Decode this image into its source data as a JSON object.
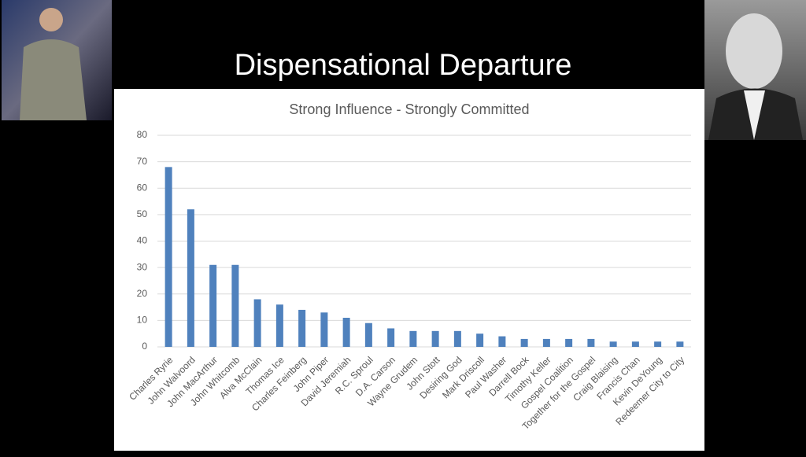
{
  "slide": {
    "title": "Dispensational Departure"
  },
  "chart_data": {
    "type": "bar",
    "title": "Strong Influence - Strongly Committed",
    "categories": [
      "Charles Ryrie",
      "John Walvoord",
      "John MacArthur",
      "John Whitcomb",
      "Alva McClain",
      "Thomas Ice",
      "Charles Feinberg",
      "John Piper",
      "David Jeremiah",
      "R.C. Sproul",
      "D.A. Carson",
      "Wayne Grudem",
      "John Stott",
      "Desiring God",
      "Mark Driscoll",
      "Paul Washer",
      "Darrell Bock",
      "Timothy Keller",
      "Gospel Coalition",
      "Together for the Gospel",
      "Craig Blaising",
      "Francis Chan",
      "Kevin DeYoung",
      "Redeemer City to City"
    ],
    "values": [
      68,
      52,
      31,
      31,
      18,
      16,
      14,
      13,
      11,
      9,
      7,
      6,
      6,
      6,
      5,
      4,
      3,
      3,
      3,
      3,
      2,
      2,
      2,
      2
    ],
    "color": "#4f81bd",
    "ylim": [
      0,
      80
    ],
    "yticks": [
      0,
      10,
      20,
      30,
      40,
      50,
      60,
      70,
      80
    ],
    "grid": true
  }
}
